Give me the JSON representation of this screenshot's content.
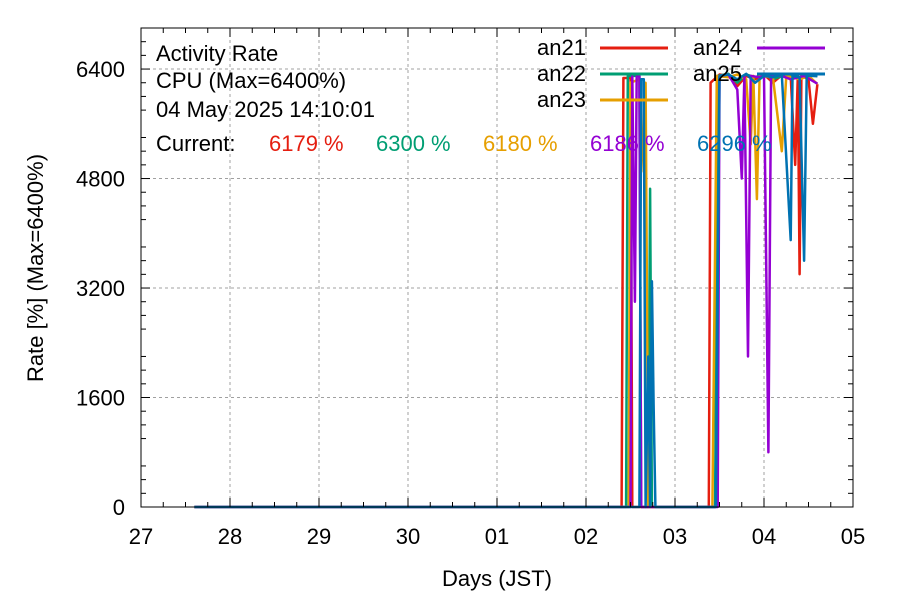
{
  "chart_data": {
    "type": "line",
    "title": "Activity Rate",
    "subtitle": "CPU (Max=6400%)",
    "timestamp": "04 May 2025 14:10:01",
    "current_label": "Current:",
    "xlabel": "Days (JST)",
    "ylabel": "Rate [%]  (Max=6400%)",
    "xlim": [
      27,
      35
    ],
    "ylim": [
      0,
      7000
    ],
    "x_ticks": [
      {
        "v": 27,
        "label": "27"
      },
      {
        "v": 28,
        "label": "28"
      },
      {
        "v": 29,
        "label": "29"
      },
      {
        "v": 30,
        "label": "30"
      },
      {
        "v": 31,
        "label": "01"
      },
      {
        "v": 32,
        "label": "02"
      },
      {
        "v": 33,
        "label": "03"
      },
      {
        "v": 34,
        "label": "04"
      },
      {
        "v": 35,
        "label": "05"
      }
    ],
    "y_ticks": [
      {
        "v": 0,
        "label": "0"
      },
      {
        "v": 1600,
        "label": "1600"
      },
      {
        "v": 3200,
        "label": "3200"
      },
      {
        "v": 4800,
        "label": "4800"
      },
      {
        "v": 6400,
        "label": "6400"
      }
    ],
    "grid": true,
    "legend_position": "top-right",
    "series": [
      {
        "name": "an21",
        "color": "#e51e10",
        "current": "6179 %",
        "points": [
          [
            27.6,
            0
          ],
          [
            32.4,
            0
          ],
          [
            32.42,
            6270
          ],
          [
            32.5,
            6270
          ],
          [
            32.52,
            0
          ],
          [
            33.38,
            0
          ],
          [
            33.4,
            6200
          ],
          [
            33.5,
            6320
          ],
          [
            33.6,
            6300
          ],
          [
            33.7,
            6150
          ],
          [
            33.8,
            6300
          ],
          [
            33.9,
            6250
          ],
          [
            34.0,
            6320
          ],
          [
            34.1,
            6200
          ],
          [
            34.2,
            6310
          ],
          [
            34.3,
            6290
          ],
          [
            34.35,
            5000
          ],
          [
            34.38,
            6300
          ],
          [
            34.4,
            3400
          ],
          [
            34.42,
            6300
          ],
          [
            34.5,
            6250
          ],
          [
            34.55,
            5600
          ],
          [
            34.6,
            6179
          ]
        ]
      },
      {
        "name": "an22",
        "color": "#009e73",
        "current": "6300 %",
        "points": [
          [
            27.6,
            0
          ],
          [
            32.45,
            0
          ],
          [
            32.47,
            6300
          ],
          [
            32.6,
            6300
          ],
          [
            32.62,
            0
          ],
          [
            32.7,
            0
          ],
          [
            32.72,
            4650
          ],
          [
            32.74,
            0
          ],
          [
            33.45,
            0
          ],
          [
            33.48,
            6300
          ],
          [
            33.6,
            6330
          ],
          [
            33.7,
            6200
          ],
          [
            33.8,
            6320
          ],
          [
            33.9,
            6280
          ],
          [
            34.0,
            6330
          ],
          [
            34.1,
            6250
          ],
          [
            34.2,
            6300
          ],
          [
            34.3,
            6320
          ],
          [
            34.4,
            6280
          ],
          [
            34.5,
            6300
          ],
          [
            34.6,
            6300
          ]
        ]
      },
      {
        "name": "an23",
        "color": "#e69f00",
        "current": "6180 %",
        "points": [
          [
            27.6,
            0
          ],
          [
            32.48,
            0
          ],
          [
            32.5,
            6200
          ],
          [
            32.6,
            6250
          ],
          [
            32.65,
            4900
          ],
          [
            32.67,
            6200
          ],
          [
            32.7,
            0
          ],
          [
            33.42,
            0
          ],
          [
            33.45,
            3800
          ],
          [
            33.47,
            6300
          ],
          [
            33.6,
            6280
          ],
          [
            33.7,
            6320
          ],
          [
            33.8,
            6250
          ],
          [
            33.85,
            5300
          ],
          [
            33.88,
            6300
          ],
          [
            33.92,
            4500
          ],
          [
            33.95,
            6300
          ],
          [
            34.1,
            6280
          ],
          [
            34.2,
            5200
          ],
          [
            34.25,
            6300
          ],
          [
            34.4,
            6250
          ],
          [
            34.5,
            6300
          ],
          [
            34.6,
            6180
          ]
        ]
      },
      {
        "name": "an24",
        "color": "#9400d3",
        "current": "6186 %",
        "points": [
          [
            27.6,
            0
          ],
          [
            32.5,
            0
          ],
          [
            32.52,
            6320
          ],
          [
            32.55,
            3000
          ],
          [
            32.57,
            6300
          ],
          [
            32.6,
            6300
          ],
          [
            32.62,
            0
          ],
          [
            33.48,
            0
          ],
          [
            33.5,
            6300
          ],
          [
            33.6,
            6320
          ],
          [
            33.7,
            6100
          ],
          [
            33.75,
            4800
          ],
          [
            33.78,
            6300
          ],
          [
            33.82,
            2200
          ],
          [
            33.85,
            6300
          ],
          [
            33.95,
            6280
          ],
          [
            34.0,
            6300
          ],
          [
            34.05,
            800
          ],
          [
            34.08,
            6320
          ],
          [
            34.2,
            6300
          ],
          [
            34.3,
            6250
          ],
          [
            34.45,
            6300
          ],
          [
            34.6,
            6186
          ]
        ]
      },
      {
        "name": "an25",
        "color": "#0072b2",
        "current": "6296 %",
        "points": [
          [
            27.6,
            0
          ],
          [
            32.6,
            0
          ],
          [
            32.62,
            6250
          ],
          [
            32.65,
            6250
          ],
          [
            32.67,
            0
          ],
          [
            32.7,
            2200
          ],
          [
            32.72,
            0
          ],
          [
            32.74,
            3300
          ],
          [
            32.76,
            1500
          ],
          [
            32.78,
            0
          ],
          [
            33.46,
            0
          ],
          [
            33.5,
            6300
          ],
          [
            33.6,
            6320
          ],
          [
            33.7,
            6250
          ],
          [
            33.8,
            6330
          ],
          [
            33.9,
            6200
          ],
          [
            34.0,
            6300
          ],
          [
            34.1,
            6280
          ],
          [
            34.2,
            6320
          ],
          [
            34.3,
            3900
          ],
          [
            34.32,
            6300
          ],
          [
            34.4,
            6280
          ],
          [
            34.45,
            3600
          ],
          [
            34.48,
            6300
          ],
          [
            34.55,
            6300
          ],
          [
            34.6,
            6296
          ]
        ]
      }
    ]
  }
}
